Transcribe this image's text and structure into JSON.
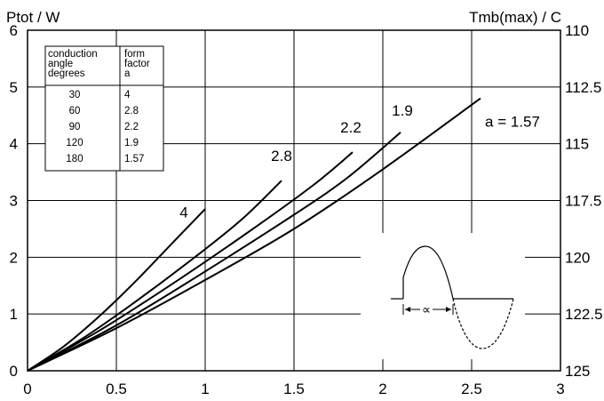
{
  "chart_data": {
    "type": "line",
    "ylabel_left": "Ptot / W",
    "ylabel_right": "Tmb(max) / C",
    "x_ticks": [
      "0",
      "0.5",
      "1",
      "1.5",
      "2",
      "2.5",
      "3"
    ],
    "y_ticks": [
      "0",
      "1",
      "2",
      "3",
      "4",
      "5",
      "6"
    ],
    "y2_ticks": [
      "110",
      "112.5",
      "115",
      "117.5",
      "120",
      "122.5",
      "125"
    ],
    "xlim": [
      0,
      3
    ],
    "ylim": [
      0,
      6
    ],
    "y2lim": [
      125,
      110
    ],
    "grid": true,
    "series": [
      {
        "name": "4",
        "x": [
          0,
          0.2,
          0.4,
          0.6,
          0.8,
          1.0
        ],
        "y": [
          0,
          0.42,
          0.95,
          1.55,
          2.2,
          2.85
        ]
      },
      {
        "name": "2.8",
        "x": [
          0,
          0.3,
          0.6,
          0.9,
          1.2,
          1.43
        ],
        "y": [
          0,
          0.55,
          1.2,
          1.9,
          2.65,
          3.35
        ]
      },
      {
        "name": "2.2",
        "x": [
          0,
          0.4,
          0.8,
          1.2,
          1.6,
          1.83
        ],
        "y": [
          0,
          0.7,
          1.5,
          2.35,
          3.25,
          3.85
        ]
      },
      {
        "name": "1.9",
        "x": [
          0,
          0.5,
          1.0,
          1.5,
          1.8,
          2.1
        ],
        "y": [
          0,
          0.8,
          1.75,
          2.75,
          3.4,
          4.2
        ]
      },
      {
        "name": "a = 1.57",
        "x": [
          0,
          0.5,
          1.0,
          1.5,
          2.0,
          2.55
        ],
        "y": [
          0,
          0.75,
          1.6,
          2.5,
          3.55,
          4.8
        ]
      }
    ],
    "curve_labels": [
      {
        "text": "4",
        "x": 0.88,
        "y": 2.7
      },
      {
        "text": "2.8",
        "x": 1.43,
        "y": 3.7
      },
      {
        "text": "2.2",
        "x": 1.82,
        "y": 4.2
      },
      {
        "text": "1.9",
        "x": 2.11,
        "y": 4.5
      },
      {
        "text": "a = 1.57",
        "x": 2.73,
        "y": 4.3
      }
    ],
    "table": {
      "header_col1": [
        "conduction",
        "angle",
        "degrees"
      ],
      "header_col2": [
        "form",
        "factor",
        "a"
      ],
      "rows": [
        [
          "30",
          "4"
        ],
        [
          "60",
          "2.8"
        ],
        [
          "90",
          "2.2"
        ],
        [
          "120",
          "1.9"
        ],
        [
          "180",
          "1.57"
        ]
      ]
    },
    "inset_symbol": "∝"
  }
}
